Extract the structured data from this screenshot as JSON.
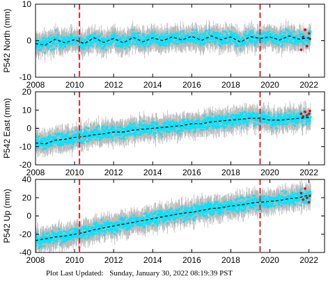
{
  "footer": {
    "label": "Plot Last Updated:",
    "timestamp": "Sunday, January 30, 2022 08:19:39 PST"
  },
  "colors": {
    "envelope": "#b8b8b8",
    "daily_points": "#00e5ff",
    "model_line": "#000000",
    "recent_points": "#e00000",
    "event_lines": "#e8262a"
  },
  "chart_data": [
    {
      "type": "scatter",
      "ylabel": "P542 North (mm)",
      "xlim": [
        2008,
        2022.8
      ],
      "ylim": [
        -10,
        10
      ],
      "yticks": [
        -10,
        0,
        10
      ],
      "xticks": [
        2008,
        2010,
        2012,
        2014,
        2016,
        2018,
        2020,
        2022
      ],
      "x_tick_labels_visible": true,
      "grid": false,
      "legend": "none",
      "event_lines_x": [
        2010.25,
        2019.5
      ],
      "series": [
        {
          "role": "model",
          "x": [
            2008.0,
            2008.5,
            2009.0,
            2009.5,
            2010.0,
            2010.5,
            2011.0,
            2011.5,
            2012.0,
            2012.5,
            2013.0,
            2013.5,
            2014.0,
            2014.5,
            2015.0,
            2015.5,
            2016.0,
            2016.5,
            2017.0,
            2017.5,
            2018.0,
            2018.5,
            2019.0,
            2019.5,
            2020.0,
            2020.5,
            2021.0,
            2021.5,
            2022.0
          ],
          "y": [
            -0.8,
            -1.2,
            0.4,
            -0.6,
            0.3,
            -0.8,
            0.8,
            -0.5,
            0.6,
            -0.6,
            0.9,
            -0.3,
            0.8,
            0.0,
            1.0,
            0.2,
            1.2,
            0.1,
            1.3,
            0.3,
            1.0,
            -0.4,
            1.1,
            0.6,
            1.0,
            0.2,
            1.3,
            0.4,
            0.8
          ]
        },
        {
          "role": "recent",
          "x": [
            2021.6,
            2021.7,
            2021.8,
            2021.9,
            2022.0,
            2022.05
          ],
          "y": [
            -2.5,
            1.0,
            3.0,
            -1.5,
            2.0,
            0.5
          ]
        }
      ]
    },
    {
      "type": "scatter",
      "ylabel": "P542 East (mm)",
      "xlim": [
        2008,
        2022.8
      ],
      "ylim": [
        -20,
        20
      ],
      "yticks": [
        -20,
        -10,
        0,
        10,
        20
      ],
      "xticks": [
        2008,
        2010,
        2012,
        2014,
        2016,
        2018,
        2020,
        2022
      ],
      "x_tick_labels_visible": true,
      "grid": false,
      "legend": "none",
      "event_lines_x": [
        2010.25,
        2019.5
      ],
      "series": [
        {
          "role": "model",
          "x": [
            2008.0,
            2008.5,
            2009.0,
            2009.5,
            2010.0,
            2010.5,
            2011.0,
            2011.5,
            2012.0,
            2012.5,
            2013.0,
            2013.5,
            2014.0,
            2014.5,
            2015.0,
            2015.5,
            2016.0,
            2016.5,
            2017.0,
            2017.5,
            2018.0,
            2018.5,
            2019.0,
            2019.5,
            2020.0,
            2020.5,
            2021.0,
            2021.5,
            2022.0
          ],
          "y": [
            -8.0,
            -8.5,
            -6.5,
            -6.0,
            -5.0,
            -4.5,
            -3.5,
            -3.0,
            -2.0,
            -2.0,
            -1.0,
            -0.5,
            0.0,
            0.5,
            1.0,
            1.5,
            2.5,
            2.5,
            3.5,
            4.0,
            4.5,
            5.0,
            5.5,
            5.5,
            4.5,
            4.5,
            5.0,
            5.5,
            6.0
          ]
        },
        {
          "role": "recent",
          "x": [
            2021.6,
            2021.7,
            2021.8,
            2021.9,
            2022.0,
            2022.05
          ],
          "y": [
            8.0,
            6.5,
            9.0,
            7.0,
            8.0,
            9.5
          ]
        }
      ]
    },
    {
      "type": "scatter",
      "ylabel": "P542 Up (mm)",
      "xlim": [
        2008,
        2022.8
      ],
      "ylim": [
        -40,
        40
      ],
      "yticks": [
        -40,
        -20,
        0,
        20,
        40
      ],
      "xticks": [
        2008,
        2010,
        2012,
        2014,
        2016,
        2018,
        2020,
        2022
      ],
      "x_tick_labels_visible": true,
      "grid": false,
      "legend": "none",
      "event_lines_x": [
        2010.25,
        2019.5
      ],
      "series": [
        {
          "role": "model",
          "x": [
            2008.0,
            2008.5,
            2009.0,
            2009.5,
            2010.0,
            2010.5,
            2011.0,
            2011.5,
            2012.0,
            2012.5,
            2013.0,
            2013.5,
            2014.0,
            2014.5,
            2015.0,
            2015.5,
            2016.0,
            2016.5,
            2017.0,
            2017.5,
            2018.0,
            2018.5,
            2019.0,
            2019.5,
            2020.0,
            2020.5,
            2021.0,
            2021.5,
            2022.0
          ],
          "y": [
            -27,
            -25,
            -23,
            -22,
            -20,
            -18,
            -15,
            -13,
            -11,
            -9,
            -7,
            -5,
            -3,
            -1,
            1,
            3,
            4,
            6,
            8,
            9,
            11,
            12,
            14,
            15,
            16,
            17,
            19,
            20,
            23
          ]
        },
        {
          "role": "recent",
          "x": [
            2021.6,
            2021.7,
            2021.8,
            2021.9,
            2022.0,
            2022.05
          ],
          "y": [
            25,
            18,
            30,
            20,
            15,
            22
          ]
        }
      ]
    }
  ]
}
